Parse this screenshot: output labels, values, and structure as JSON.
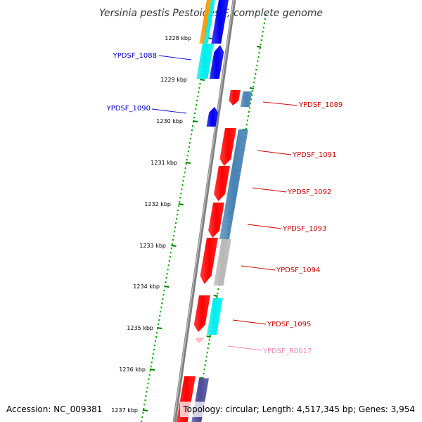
{
  "map": {
    "title": "Yersinia pestis Pestoides F, complete genome",
    "footer_left": "Accession: NC_009381",
    "footer_right": "Topology: circular; Length: 4,517,345 bp; Genes: 3,954"
  },
  "colors": {
    "backbone": "#808080",
    "forward_label": "#0000cc",
    "reverse_label": "#cc0000",
    "rna_label": "#ee88bb",
    "tick_major": "#008000",
    "tick_minor": "#00aa00",
    "gene_red": "#ff0000",
    "gene_blue": "#0000ee",
    "gene_cyan": "#00eeee",
    "gene_orange": "#ff9900",
    "gene_steel": "#4682b4",
    "gene_gray": "#b8b8b8",
    "gene_navy": "#4b4b9b",
    "gene_pink": "#ffb6c1"
  },
  "ticks": [
    {
      "label": "1228 kbp"
    },
    {
      "label": "1229 kbp"
    },
    {
      "label": "1230 kbp"
    },
    {
      "label": "1231 kbp"
    },
    {
      "label": "1232 kbp"
    },
    {
      "label": "1233 kbp"
    },
    {
      "label": "1234 kbp"
    },
    {
      "label": "1235 kbp"
    },
    {
      "label": "1236 kbp"
    },
    {
      "label": "1237 kbp"
    }
  ],
  "labels": [
    {
      "text": "YPDSF_1088",
      "strand": "forward"
    },
    {
      "text": "YPDSF_1090",
      "strand": "forward"
    },
    {
      "text": "YPDSF_1089",
      "strand": "reverse"
    },
    {
      "text": "YPDSF_1091",
      "strand": "reverse"
    },
    {
      "text": "YPDSF_1092",
      "strand": "reverse"
    },
    {
      "text": "YPDSF_1093",
      "strand": "reverse"
    },
    {
      "text": "YPDSF_1094",
      "strand": "reverse"
    },
    {
      "text": "YPDSF_1095",
      "strand": "reverse"
    },
    {
      "text": "YPDSF_R0017",
      "strand": "rna"
    }
  ]
}
